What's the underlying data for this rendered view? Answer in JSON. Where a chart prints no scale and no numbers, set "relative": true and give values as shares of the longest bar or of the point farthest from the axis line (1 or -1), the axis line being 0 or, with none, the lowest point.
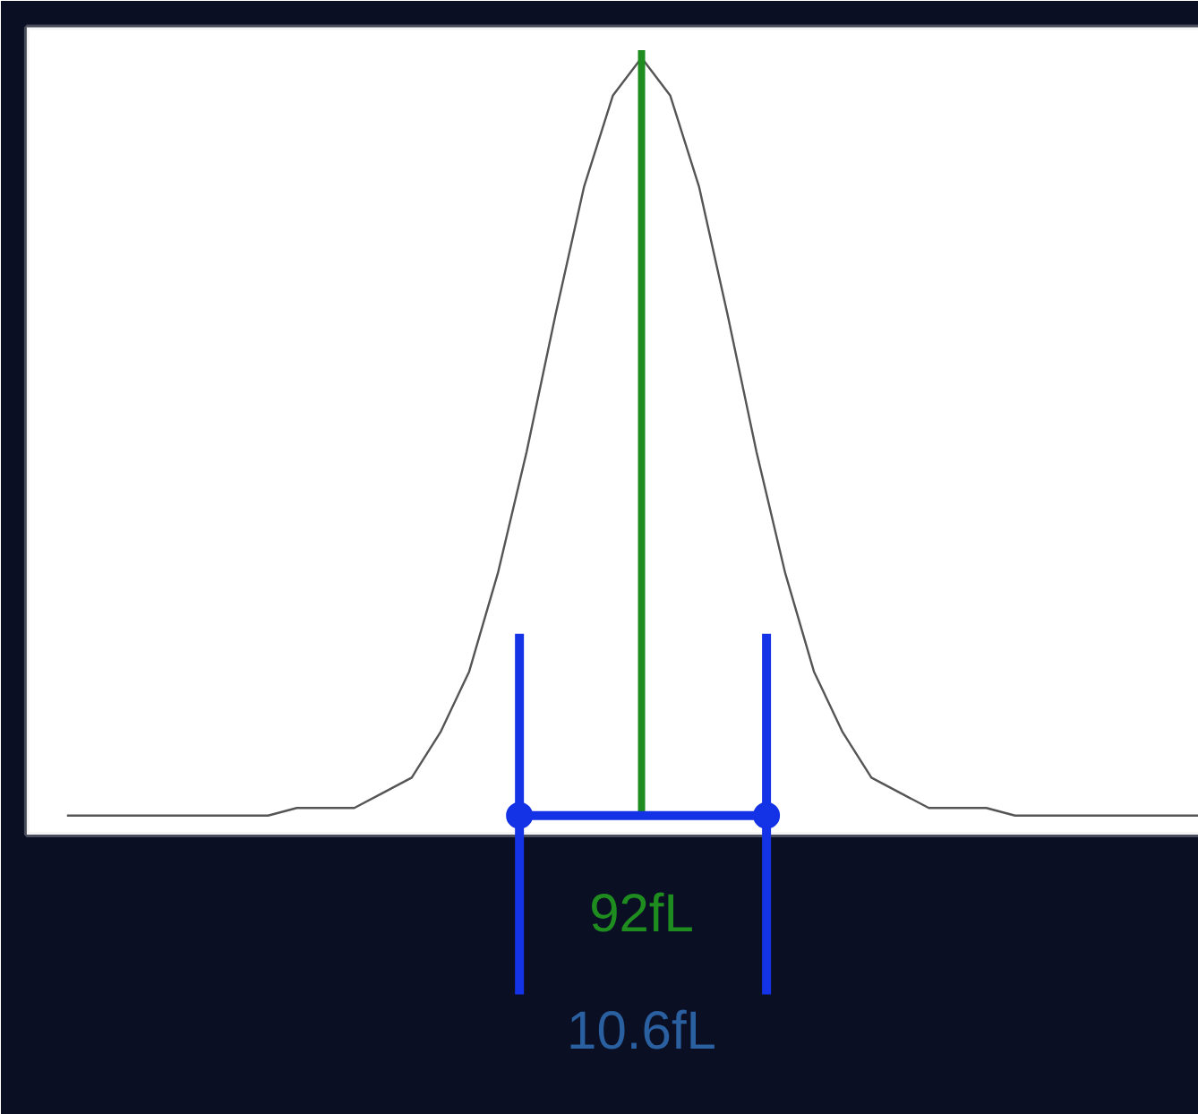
{
  "chart_data": {
    "type": "line",
    "relative": true,
    "categories": [
      null,
      null,
      null,
      null,
      null,
      null,
      null,
      null,
      null,
      null,
      null,
      null,
      null,
      null,
      null,
      null,
      null,
      null,
      null,
      null,
      null,
      null,
      null,
      null,
      null,
      null,
      null,
      null,
      null,
      null,
      null,
      null,
      null,
      null,
      null,
      null,
      null,
      null,
      null,
      null,
      null
    ],
    "series": [
      {
        "color": "#555555",
        "values": [
          0,
          0,
          0,
          0,
          0,
          0,
          0,
          0,
          0.01,
          0.01,
          0.01,
          0.03,
          0.05,
          0.11,
          0.19,
          0.32,
          0.48,
          0.66,
          0.83,
          0.95,
          1,
          0.95,
          0.83,
          0.66,
          0.48,
          0.32,
          0.19,
          0.11,
          0.05,
          0.03,
          0.01,
          0.01,
          0.01,
          0,
          0,
          0,
          0,
          0,
          0,
          0,
          0
        ]
      }
    ],
    "annotations": [
      "92fL",
      "10.6fL"
    ]
  }
}
